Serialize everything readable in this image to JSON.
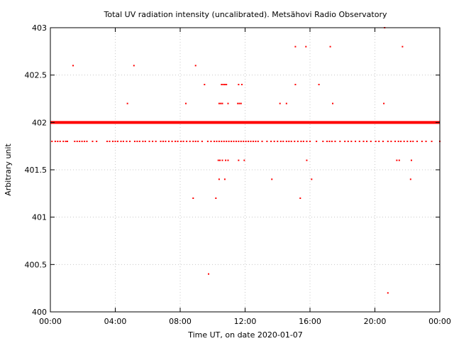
{
  "chart_data": {
    "type": "scatter",
    "title": "Total UV radiation intensity (uncalibrated). Metsähovi Radio Observatory",
    "xlabel": "Time UT, on date 2020-01-07",
    "ylabel": "Arbitrary unit",
    "xlim": [
      0,
      24
    ],
    "ylim": [
      400,
      403
    ],
    "x_ticks": [
      "00:00",
      "04:00",
      "08:00",
      "12:00",
      "16:00",
      "20:00",
      "00:00"
    ],
    "y_ticks": [
      "400",
      "400.5",
      "401",
      "401.5",
      "402",
      "402.5",
      "403"
    ],
    "grid": true,
    "marker_color": "#ff0000",
    "background_color": "#ffffff",
    "series": [
      {
        "name": "",
        "baseline_402": {
          "y": 402.0,
          "x_range": [
            0,
            24
          ]
        },
        "points": [
          [
            0.1,
            401.8
          ],
          [
            0.3,
            401.8
          ],
          [
            0.45,
            401.8
          ],
          [
            0.6,
            401.8
          ],
          [
            0.8,
            401.8
          ],
          [
            0.95,
            401.8
          ],
          [
            1.05,
            401.8
          ],
          [
            1.5,
            401.8
          ],
          [
            1.65,
            401.8
          ],
          [
            1.8,
            401.8
          ],
          [
            1.95,
            401.8
          ],
          [
            2.1,
            401.8
          ],
          [
            2.25,
            401.8
          ],
          [
            2.6,
            401.8
          ],
          [
            2.85,
            401.8
          ],
          [
            3.5,
            401.8
          ],
          [
            3.65,
            401.8
          ],
          [
            3.85,
            401.8
          ],
          [
            4.0,
            401.8
          ],
          [
            4.15,
            401.8
          ],
          [
            4.35,
            401.8
          ],
          [
            4.5,
            401.8
          ],
          [
            4.7,
            401.8
          ],
          [
            4.9,
            401.8
          ],
          [
            5.2,
            401.8
          ],
          [
            5.35,
            401.8
          ],
          [
            5.5,
            401.8
          ],
          [
            5.7,
            401.8
          ],
          [
            5.85,
            401.8
          ],
          [
            6.1,
            401.8
          ],
          [
            6.3,
            401.8
          ],
          [
            6.5,
            401.8
          ],
          [
            6.8,
            401.8
          ],
          [
            6.95,
            401.8
          ],
          [
            7.1,
            401.8
          ],
          [
            7.3,
            401.8
          ],
          [
            7.5,
            401.8
          ],
          [
            7.7,
            401.8
          ],
          [
            7.85,
            401.8
          ],
          [
            8.05,
            401.8
          ],
          [
            8.2,
            401.8
          ],
          [
            8.4,
            401.8
          ],
          [
            8.6,
            401.8
          ],
          [
            8.8,
            401.8
          ],
          [
            8.95,
            401.8
          ],
          [
            9.1,
            401.8
          ],
          [
            9.35,
            401.8
          ],
          [
            9.7,
            401.8
          ],
          [
            9.9,
            401.8
          ],
          [
            10.1,
            401.8
          ],
          [
            10.25,
            401.8
          ],
          [
            10.4,
            401.8
          ],
          [
            10.55,
            401.8
          ],
          [
            10.7,
            401.8
          ],
          [
            10.85,
            401.8
          ],
          [
            11.0,
            401.8
          ],
          [
            11.15,
            401.8
          ],
          [
            11.3,
            401.8
          ],
          [
            11.45,
            401.8
          ],
          [
            11.6,
            401.8
          ],
          [
            11.75,
            401.8
          ],
          [
            11.9,
            401.8
          ],
          [
            12.05,
            401.8
          ],
          [
            12.2,
            401.8
          ],
          [
            12.35,
            401.8
          ],
          [
            12.5,
            401.8
          ],
          [
            12.65,
            401.8
          ],
          [
            12.8,
            401.8
          ],
          [
            13.05,
            401.8
          ],
          [
            13.35,
            401.8
          ],
          [
            13.6,
            401.8
          ],
          [
            13.8,
            401.8
          ],
          [
            14.0,
            401.8
          ],
          [
            14.2,
            401.8
          ],
          [
            14.35,
            401.8
          ],
          [
            14.55,
            401.8
          ],
          [
            14.7,
            401.8
          ],
          [
            14.85,
            401.8
          ],
          [
            15.05,
            401.8
          ],
          [
            15.25,
            401.8
          ],
          [
            15.45,
            401.8
          ],
          [
            15.6,
            401.8
          ],
          [
            15.8,
            401.8
          ],
          [
            16.0,
            401.8
          ],
          [
            16.4,
            401.8
          ],
          [
            16.8,
            401.8
          ],
          [
            17.05,
            401.8
          ],
          [
            17.2,
            401.8
          ],
          [
            17.35,
            401.8
          ],
          [
            17.55,
            401.8
          ],
          [
            17.85,
            401.8
          ],
          [
            18.15,
            401.8
          ],
          [
            18.35,
            401.8
          ],
          [
            18.55,
            401.8
          ],
          [
            18.8,
            401.8
          ],
          [
            19.05,
            401.8
          ],
          [
            19.3,
            401.8
          ],
          [
            19.5,
            401.8
          ],
          [
            19.75,
            401.8
          ],
          [
            20.05,
            401.8
          ],
          [
            20.25,
            401.8
          ],
          [
            20.5,
            401.8
          ],
          [
            20.8,
            401.8
          ],
          [
            21.0,
            401.8
          ],
          [
            21.25,
            401.8
          ],
          [
            21.45,
            401.8
          ],
          [
            21.6,
            401.8
          ],
          [
            21.8,
            401.8
          ],
          [
            22.0,
            401.8
          ],
          [
            22.2,
            401.8
          ],
          [
            22.35,
            401.8
          ],
          [
            22.6,
            401.8
          ],
          [
            22.9,
            401.8
          ],
          [
            23.15,
            401.8
          ],
          [
            23.5,
            401.8
          ],
          [
            24.0,
            401.8
          ],
          [
            10.35,
            401.6
          ],
          [
            10.45,
            401.6
          ],
          [
            10.6,
            401.6
          ],
          [
            10.8,
            401.6
          ],
          [
            10.95,
            401.6
          ],
          [
            11.6,
            401.6
          ],
          [
            11.95,
            401.6
          ],
          [
            15.8,
            401.6
          ],
          [
            21.35,
            401.6
          ],
          [
            21.5,
            401.6
          ],
          [
            22.25,
            401.6
          ],
          [
            10.4,
            401.4
          ],
          [
            10.75,
            401.4
          ],
          [
            13.65,
            401.4
          ],
          [
            16.1,
            401.4
          ],
          [
            22.2,
            401.4
          ],
          [
            8.8,
            401.2
          ],
          [
            10.2,
            401.2
          ],
          [
            15.4,
            401.2
          ],
          [
            9.75,
            400.4
          ],
          [
            20.8,
            400.2
          ],
          [
            1.4,
            402.6
          ],
          [
            5.15,
            402.6
          ],
          [
            8.95,
            402.6
          ],
          [
            9.5,
            402.4
          ],
          [
            10.55,
            402.4
          ],
          [
            10.65,
            402.4
          ],
          [
            10.75,
            402.4
          ],
          [
            10.85,
            402.4
          ],
          [
            11.6,
            402.4
          ],
          [
            11.8,
            402.4
          ],
          [
            15.1,
            402.4
          ],
          [
            16.55,
            402.4
          ],
          [
            4.75,
            402.2
          ],
          [
            8.35,
            402.2
          ],
          [
            10.4,
            402.2
          ],
          [
            10.5,
            402.2
          ],
          [
            10.6,
            402.2
          ],
          [
            10.95,
            402.2
          ],
          [
            11.55,
            402.2
          ],
          [
            11.65,
            402.2
          ],
          [
            11.75,
            402.2
          ],
          [
            14.15,
            402.2
          ],
          [
            14.55,
            402.2
          ],
          [
            17.4,
            402.2
          ],
          [
            20.55,
            402.2
          ],
          [
            15.1,
            402.8
          ],
          [
            15.75,
            402.8
          ],
          [
            17.25,
            402.8
          ],
          [
            21.7,
            402.8
          ],
          [
            20.6,
            403.0
          ]
        ]
      }
    ]
  }
}
